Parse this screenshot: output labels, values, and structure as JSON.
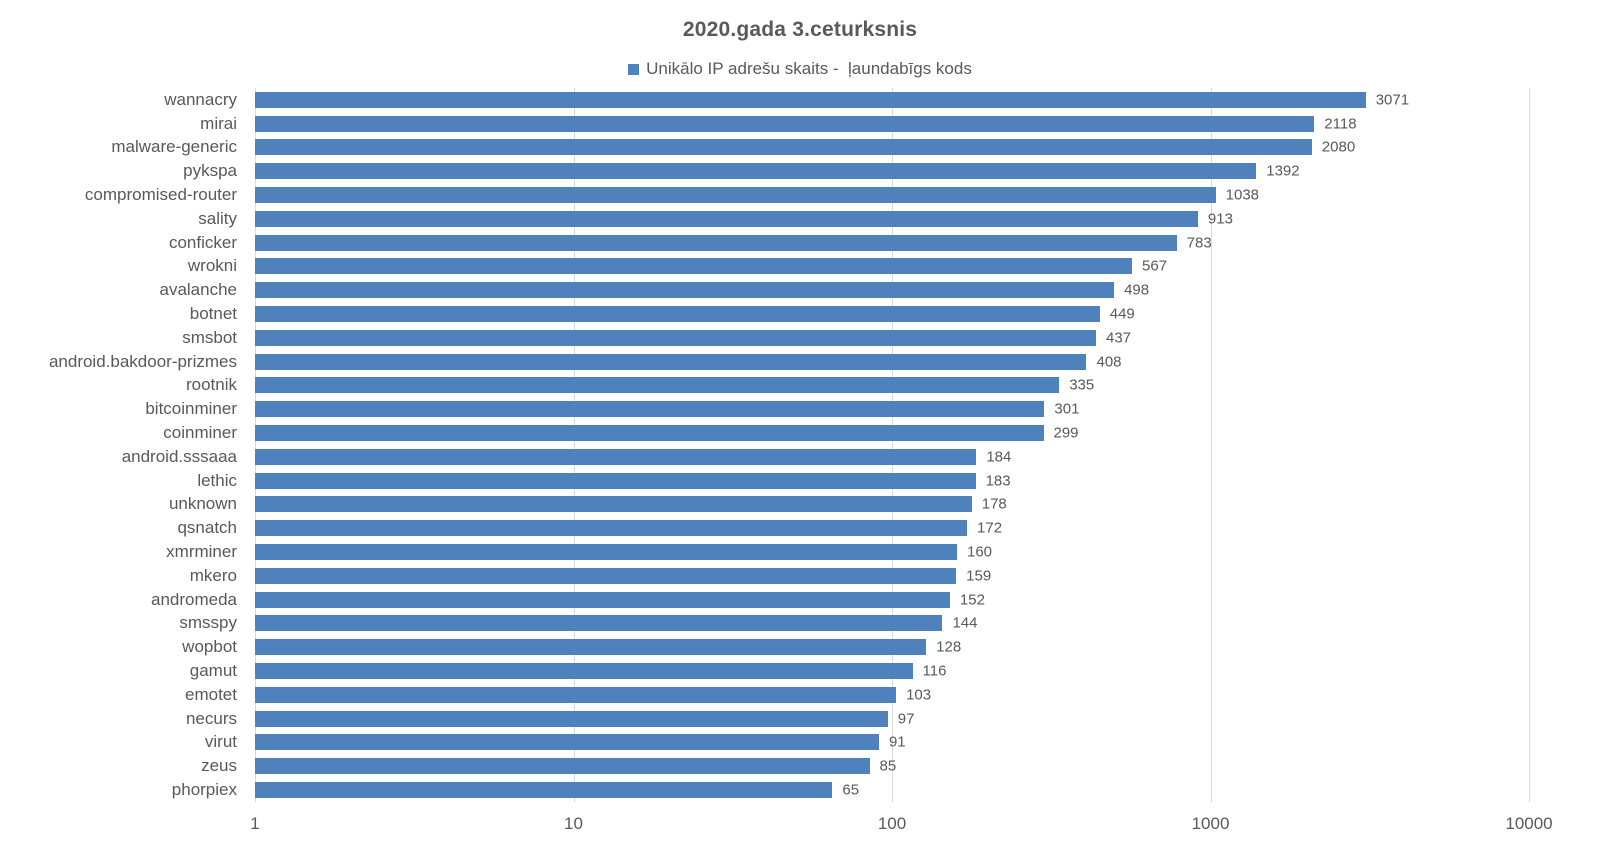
{
  "chart_data": {
    "type": "bar",
    "orientation": "horizontal",
    "title": "2020.gada 3.ceturksnis",
    "legend": "Unikālo IP adrešu skaits -  ļaundabīgs kods",
    "x_scale": "log",
    "xlim": [
      1,
      10000
    ],
    "x_ticks": [
      "1",
      "10",
      "100",
      "1000",
      "10000"
    ],
    "grid": "vertical-on",
    "legend_position": "top-center",
    "categories": [
      "wannacry",
      "mirai",
      "malware-generic",
      "pykspa",
      "compromised-router",
      "sality",
      "conficker",
      "wrokni",
      "avalanche",
      "botnet",
      "smsbot",
      "android.bakdoor-prizmes",
      "rootnik",
      "bitcoinminer",
      "coinminer",
      "android.sssaaa",
      "lethic",
      "unknown",
      "qsnatch",
      "xmrminer",
      "mkero",
      "andromeda",
      "smsspy",
      "wopbot",
      "gamut",
      "emotet",
      "necurs",
      "virut",
      "zeus",
      "phorpiex"
    ],
    "values": [
      3071,
      2118,
      2080,
      1392,
      1038,
      913,
      783,
      567,
      498,
      449,
      437,
      408,
      335,
      301,
      299,
      184,
      183,
      178,
      172,
      160,
      159,
      152,
      144,
      128,
      116,
      103,
      97,
      91,
      85,
      65
    ],
    "colors": {
      "bar": "#4F81BD",
      "text": "#595959",
      "grid": "#D9D9D9",
      "background": "#FFFFFF"
    }
  }
}
